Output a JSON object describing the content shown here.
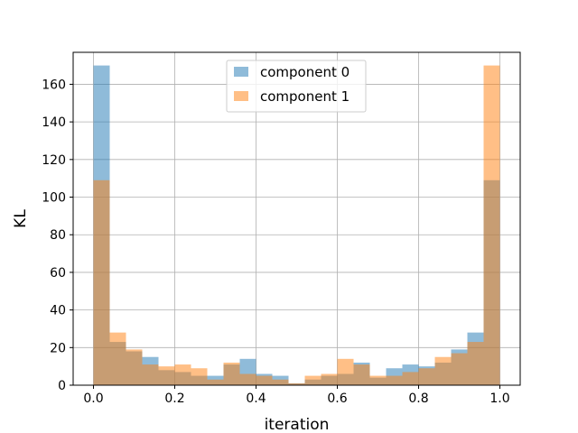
{
  "chart_data": {
    "type": "bar",
    "subtype": "overlapping-histogram",
    "title": "",
    "xlabel": "iteration",
    "ylabel": "KL",
    "xlim": [
      -0.05,
      1.05
    ],
    "ylim": [
      0,
      177
    ],
    "xticks": [
      0.0,
      0.2,
      0.4,
      0.6,
      0.8,
      1.0
    ],
    "xtick_labels": [
      "0.0",
      "0.2",
      "0.4",
      "0.6",
      "0.8",
      "1.0"
    ],
    "yticks": [
      0,
      20,
      40,
      60,
      80,
      100,
      120,
      140,
      160
    ],
    "ytick_labels": [
      "0",
      "20",
      "40",
      "60",
      "80",
      "100",
      "120",
      "140",
      "160"
    ],
    "grid": true,
    "legend_position": "top-center",
    "bin_width": 0.04,
    "bin_starts": [
      0.0,
      0.04,
      0.08,
      0.12,
      0.16,
      0.2,
      0.24,
      0.28,
      0.32,
      0.36,
      0.4,
      0.44,
      0.48,
      0.52,
      0.56,
      0.6,
      0.64,
      0.68,
      0.72,
      0.76,
      0.8,
      0.84,
      0.88,
      0.92,
      0.96
    ],
    "series": [
      {
        "name": "component 0",
        "color": "#1f77b4",
        "opacity": 0.5,
        "values": [
          170,
          23,
          18,
          15,
          8,
          7,
          5,
          5,
          11,
          14,
          6,
          5,
          1,
          3,
          5,
          6,
          12,
          4,
          9,
          11,
          10,
          12,
          19,
          28,
          109
        ]
      },
      {
        "name": "component 1",
        "color": "#ff7f0e",
        "opacity": 0.5,
        "values": [
          109,
          28,
          19,
          11,
          10,
          11,
          9,
          3,
          12,
          6,
          5,
          3,
          1,
          5,
          6,
          14,
          11,
          5,
          5,
          7,
          9,
          15,
          17,
          23,
          170
        ]
      }
    ]
  }
}
